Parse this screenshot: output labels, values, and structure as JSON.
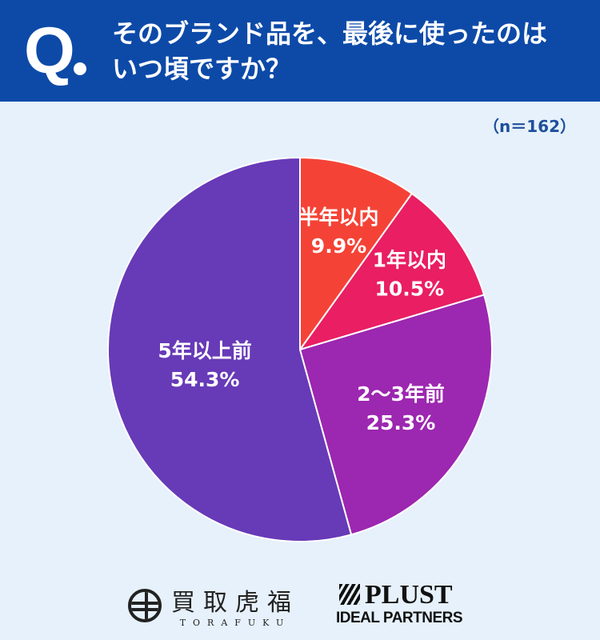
{
  "header": {
    "q_mark": "Q",
    "title_line1": "そのブランド品を、最後に使ったのは",
    "title_line2": "いつ頃ですか？"
  },
  "sample": "（n＝162）",
  "chart_data": {
    "type": "pie",
    "start": "top",
    "direction": "clockwise",
    "slices": [
      {
        "label": "半年以内",
        "value": 9.9,
        "display": "9.9%",
        "color": "#f44336"
      },
      {
        "label": "1年以内",
        "value": 10.5,
        "display": "10.5%",
        "color": "#e91e63"
      },
      {
        "label": "2〜3年前",
        "value": 25.3,
        "display": "25.3%",
        "color": "#9c27b0"
      },
      {
        "label": "5年以上前",
        "value": 54.3,
        "display": "54.3%",
        "color": "#673ab7"
      }
    ]
  },
  "footer": {
    "logo1_jp": "買取虎福",
    "logo1_en": "TORAFUKU",
    "logo2_main": "PLUST",
    "logo2_sub": "IDEAL PARTNERS"
  }
}
